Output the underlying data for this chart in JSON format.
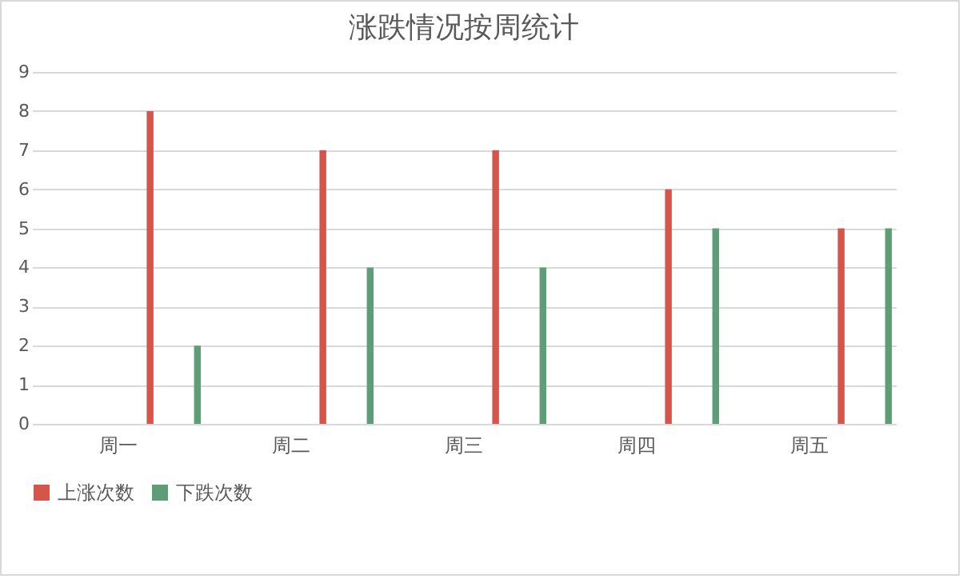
{
  "chart_data": {
    "type": "bar",
    "title": "涨跌情况按周统计",
    "categories": [
      "周一",
      "周二",
      "周三",
      "周四",
      "周五"
    ],
    "series": [
      {
        "name": "上涨次数",
        "color": "#d6554a",
        "values": [
          8,
          7,
          7,
          6,
          5
        ]
      },
      {
        "name": "下跌次数",
        "color": "#5f9d78",
        "values": [
          2,
          4,
          4,
          5,
          5
        ]
      }
    ],
    "ylim": [
      0,
      9
    ],
    "yticks": [
      0,
      1,
      2,
      3,
      4,
      5,
      6,
      7,
      8,
      9
    ],
    "grid": "y",
    "legend": "bottom"
  }
}
